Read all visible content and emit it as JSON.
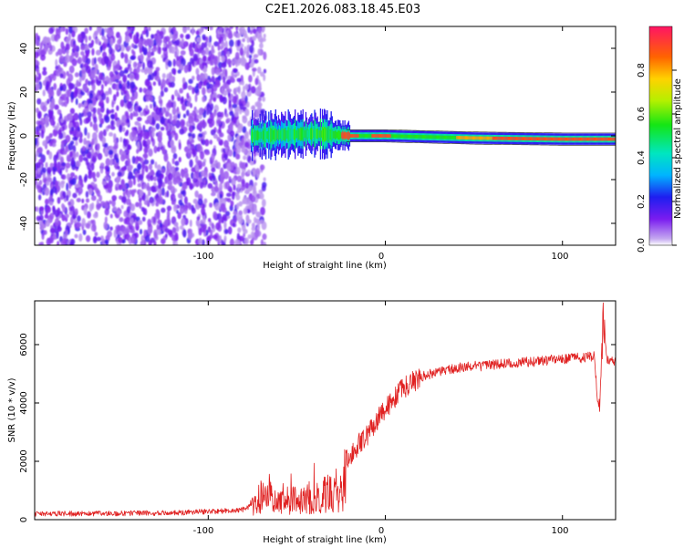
{
  "title": "C2E1.2026.083.18.45.E03",
  "chart_data": [
    {
      "type": "heatmap",
      "title": "C2E1.2026.083.18.45.E03",
      "xlabel": "Height of straight line (km)",
      "ylabel": "Frequency (Hz)",
      "xlim": [
        -198,
        130
      ],
      "ylim": [
        -50,
        50
      ],
      "x_ticks": [
        -100,
        0,
        100
      ],
      "x_tick_labels": [
        "-100",
        "0",
        "100"
      ],
      "y_ticks": [
        -40,
        -20,
        0,
        20,
        40
      ],
      "y_tick_labels": [
        "-40",
        "-20",
        "0",
        "20",
        "40"
      ],
      "colorbar": {
        "label": "Normalized spectral amplitude",
        "range": [
          0,
          1
        ],
        "ticks": [
          0,
          0.2,
          0.4,
          0.6,
          0.8
        ],
        "tick_labels": [
          "0.0",
          "0.2",
          "0.4",
          "0.6",
          "0.8"
        ]
      },
      "trace": {
        "noise_region_x": [
          -198,
          -76
        ],
        "signal_onset_x": -76,
        "center_freq_hz": [
          {
            "x": -80,
            "f": 0
          },
          {
            "x": -40,
            "f": 1
          },
          {
            "x": -20,
            "f": 0
          },
          {
            "x": 0,
            "f": 0
          },
          {
            "x": 50,
            "f": -1
          },
          {
            "x": 100,
            "f": -1.5
          },
          {
            "x": 130,
            "f": -1.5
          }
        ],
        "max_amplitude_segments": [
          [
            -25,
            -15
          ],
          [
            -8,
            3
          ],
          [
            60,
            130
          ]
        ]
      }
    },
    {
      "type": "line",
      "xlabel": "Height of straight line (km)",
      "ylabel": "SNR (10 * v/v)",
      "xlim": [
        -198,
        130
      ],
      "ylim": [
        0,
        7500
      ],
      "x_ticks": [
        -100,
        0,
        100
      ],
      "x_tick_labels": [
        "-100",
        "0",
        "100"
      ],
      "y_ticks": [
        0,
        2000,
        4000,
        6000
      ],
      "y_tick_labels": [
        "0",
        "2000",
        "4000",
        "6000"
      ],
      "series": [
        {
          "name": "SNR",
          "color": "#e02020",
          "x": [
            -198,
            -160,
            -120,
            -90,
            -80,
            -76,
            -70,
            -60,
            -50,
            -40,
            -30,
            -25,
            -22,
            -20,
            -15,
            -10,
            -5,
            0,
            10,
            20,
            30,
            40,
            60,
            80,
            100,
            110,
            118,
            120,
            121,
            123,
            125,
            130
          ],
          "y": [
            200,
            210,
            230,
            300,
            350,
            450,
            800,
            700,
            650,
            800,
            900,
            700,
            2000,
            2200,
            2600,
            2900,
            3400,
            3800,
            4500,
            4900,
            5100,
            5200,
            5300,
            5400,
            5500,
            5550,
            5600,
            4000,
            3600,
            7500,
            5500,
            5400
          ]
        }
      ]
    }
  ]
}
